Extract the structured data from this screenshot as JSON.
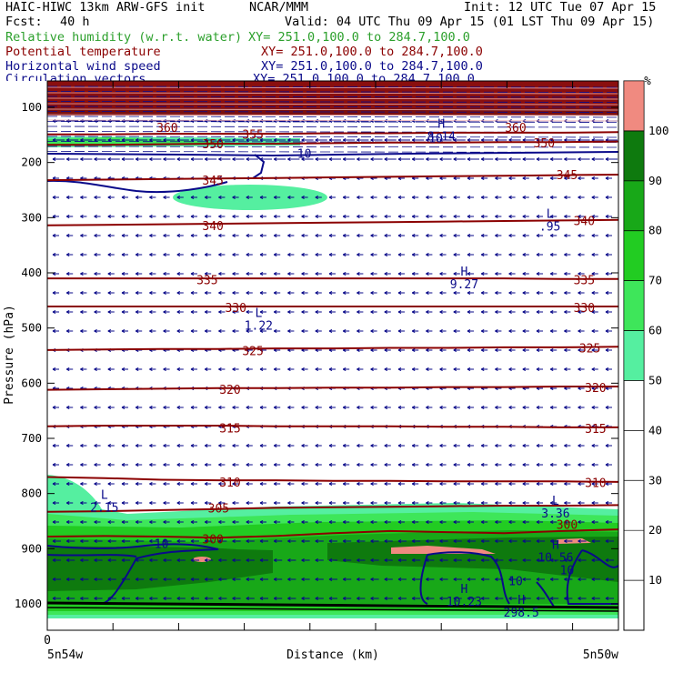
{
  "header": {
    "model": "HAIC-HIWC 13km ARW-GFS init",
    "org": "NCAR/MMM",
    "init": "Init: 12 UTC Tue 07 Apr 15",
    "fcst_label": "Fcst:",
    "fcst_value": "40 h",
    "valid": "Valid: 04 UTC Thu 09 Apr 15 (01 LST Thu 09 Apr 15)",
    "fields": [
      {
        "name": "Relative humidity (w.r.t. water)",
        "xy": "XY= 251.0,100.0 to 284.7,100.0",
        "color": "#2ca02c"
      },
      {
        "name": "Potential temperature",
        "xy": "XY= 251.0,100.0 to 284.7,100.0",
        "color": "#8b0000"
      },
      {
        "name": "Horizontal wind speed",
        "xy": "XY= 251.0,100.0 to 284.7,100.0",
        "color": "#0a0a8a"
      },
      {
        "name": "Circulation vectors",
        "xy": "XY= 251.0,100.0 to 284.7,100.0",
        "color": "#0a0a8a"
      }
    ]
  },
  "chart_data": {
    "type": "cross-section",
    "ylabel": "Pressure (hPa)",
    "xlabel": "Distance (km)",
    "x_start_tick": "0",
    "x_left_label": "5n54w",
    "x_right_label": "5n50w",
    "pressure_ticks": [
      100,
      200,
      300,
      400,
      500,
      600,
      700,
      800,
      900,
      1000
    ],
    "colorbar": {
      "unit": "%",
      "ticks": [
        10,
        20,
        30,
        40,
        50,
        60,
        70,
        80,
        90,
        100
      ],
      "bins": [
        {
          "from": 50,
          "to": 60,
          "color": "#55efa0"
        },
        {
          "from": 60,
          "to": 70,
          "color": "#3ee65a"
        },
        {
          "from": 70,
          "to": 80,
          "color": "#22cc22"
        },
        {
          "from": 80,
          "to": 90,
          "color": "#18a818"
        },
        {
          "from": 90,
          "to": 100,
          "color": "#0e7a0e"
        },
        {
          "from": 100,
          "to": 110,
          "color": "#f08a80"
        }
      ]
    },
    "theta_contours": [
      {
        "label": "300",
        "p": [
          878,
          877,
          878,
          880,
          877,
          872,
          868,
          870,
          872,
          868,
          865
        ]
      },
      {
        "label": "305",
        "p": [
          833,
          832,
          830,
          828,
          826,
          825,
          824,
          823,
          822,
          822,
          821
        ]
      },
      {
        "label": "310",
        "p": [
          770,
          772,
          775,
          776,
          776,
          777,
          777,
          778,
          778,
          778,
          779
        ]
      },
      {
        "label": "315",
        "p": [
          678,
          677,
          677,
          677,
          678,
          678,
          678,
          679,
          679,
          680,
          680
        ]
      },
      {
        "label": "320",
        "p": [
          612,
          611,
          610,
          609,
          609,
          608,
          608,
          607,
          607,
          606,
          606
        ]
      },
      {
        "label": "325",
        "p": [
          540,
          539,
          538,
          538,
          537,
          537,
          536,
          536,
          535,
          535,
          534
        ]
      },
      {
        "label": "330",
        "p": [
          461,
          461,
          461,
          461,
          461,
          461,
          461,
          461,
          461,
          461,
          461
        ]
      },
      {
        "label": "335",
        "p": [
          410,
          410,
          410,
          410,
          410,
          410,
          410,
          410,
          410,
          411,
          411
        ]
      },
      {
        "label": "340",
        "p": [
          314,
          313,
          312,
          311,
          310,
          309,
          308,
          307,
          306,
          305,
          304
        ]
      },
      {
        "label": "345",
        "p": [
          232,
          231,
          230,
          229,
          228,
          227,
          226,
          225,
          224,
          223,
          222
        ]
      },
      {
        "label": "350",
        "p": [
          168,
          168,
          167,
          166,
          166,
          165,
          164,
          164,
          163,
          163,
          162
        ]
      },
      {
        "label": "355",
        "p": [
          149,
          149,
          148,
          148,
          148,
          147,
          147,
          146,
          146,
          146,
          145
        ]
      }
    ],
    "labels": [
      {
        "text": "300",
        "x": 0.29,
        "p": 882
      },
      {
        "text": "300",
        "x": 0.91,
        "p": 856
      },
      {
        "text": "305",
        "x": 0.3,
        "p": 826
      },
      {
        "text": "310",
        "x": 0.32,
        "p": 779
      },
      {
        "text": "310",
        "x": 0.96,
        "p": 780
      },
      {
        "text": "315",
        "x": 0.32,
        "p": 681
      },
      {
        "text": "315",
        "x": 0.96,
        "p": 682
      },
      {
        "text": "320",
        "x": 0.32,
        "p": 611
      },
      {
        "text": "320",
        "x": 0.96,
        "p": 608
      },
      {
        "text": "325",
        "x": 0.36,
        "p": 541
      },
      {
        "text": "325",
        "x": 0.95,
        "p": 536
      },
      {
        "text": "330",
        "x": 0.33,
        "p": 463
      },
      {
        "text": "330",
        "x": 0.94,
        "p": 463
      },
      {
        "text": "335",
        "x": 0.28,
        "p": 412
      },
      {
        "text": "335",
        "x": 0.94,
        "p": 412
      },
      {
        "text": "340",
        "x": 0.29,
        "p": 314
      },
      {
        "text": "340",
        "x": 0.94,
        "p": 305
      },
      {
        "text": "345",
        "x": 0.29,
        "p": 232
      },
      {
        "text": "345",
        "x": 0.91,
        "p": 222
      },
      {
        "text": "350",
        "x": 0.29,
        "p": 166
      },
      {
        "text": "350",
        "x": 0.87,
        "p": 164
      },
      {
        "text": "355",
        "x": 0.36,
        "p": 149
      },
      {
        "text": "360",
        "x": 0.21,
        "p": 136
      },
      {
        "text": "360",
        "x": 0.82,
        "p": 136
      }
    ],
    "extrema": [
      {
        "symbol": "L",
        "value": "2.15",
        "x": 0.1,
        "p": 810
      },
      {
        "symbol": "L",
        "value": "1.22",
        "x": 0.37,
        "p": 480
      },
      {
        "symbol": "H",
        "value": "9.27",
        "x": 0.73,
        "p": 405
      },
      {
        "symbol": "L",
        "value": ".95",
        "x": 0.88,
        "p": 300
      },
      {
        "symbol": "L",
        "value": "3.36",
        "x": 0.89,
        "p": 820
      },
      {
        "symbol": "H",
        "value": "10.56",
        "x": 0.89,
        "p": 900
      },
      {
        "symbol": "H",
        "value": "10.23",
        "x": 0.73,
        "p": 980
      },
      {
        "symbol": "H",
        "value": "298.5",
        "x": 0.83,
        "p": 1000
      },
      {
        "symbol": "H",
        "value": "8.14",
        "x": 0.69,
        "p": 137
      }
    ],
    "wind_labels": [
      {
        "text": "10",
        "x": 0.45,
        "p": 183
      },
      {
        "text": "10",
        "x": 0.2,
        "p": 890
      },
      {
        "text": "10",
        "x": 0.82,
        "p": 958
      },
      {
        "text": "10",
        "x": 0.91,
        "p": 938
      },
      {
        "text": "10",
        "x": 0.68,
        "p": 155
      }
    ]
  }
}
